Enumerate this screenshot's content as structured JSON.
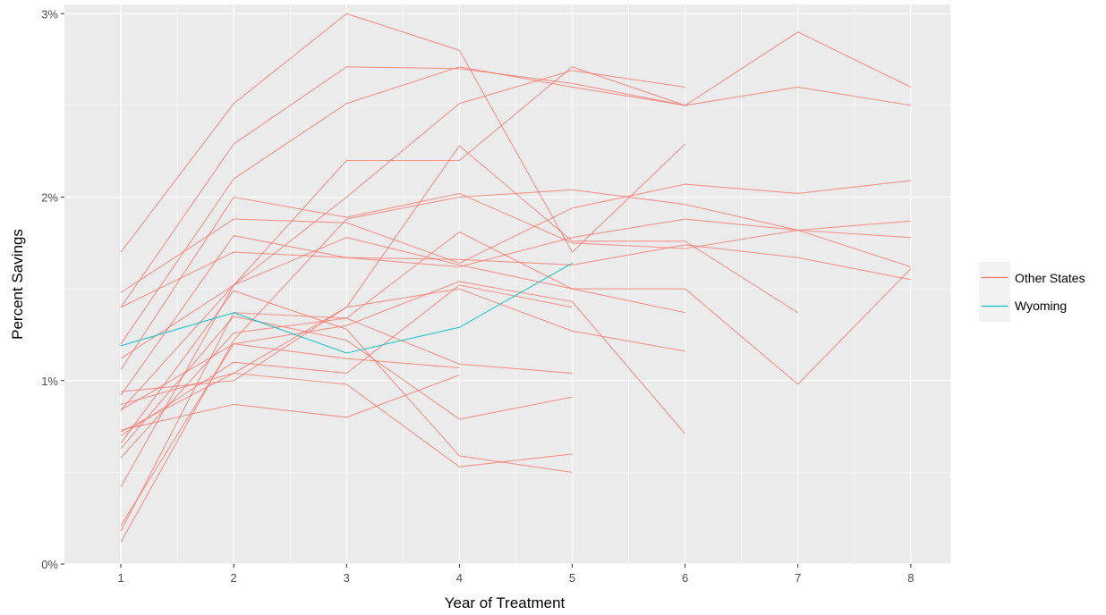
{
  "chart_data": {
    "type": "line",
    "xlabel": "Year of Treatment",
    "ylabel": "Percent Savings",
    "xlim": [
      0.5,
      8.35
    ],
    "ylim": [
      0,
      3.05
    ],
    "x_ticks": [
      1,
      2,
      3,
      4,
      5,
      6,
      7,
      8
    ],
    "x_tick_labels": [
      "1",
      "2",
      "3",
      "4",
      "5",
      "6",
      "7",
      "8"
    ],
    "y_ticks": [
      0,
      1,
      2,
      3
    ],
    "y_tick_labels": [
      "0%",
      "1%",
      "2%",
      "3%"
    ],
    "y_minor_ticks": [
      0.5,
      1.5,
      2.5
    ],
    "x_minor_ticks": [
      1.5,
      2.5,
      3.5,
      4.5,
      5.5,
      6.5,
      7.5
    ],
    "grid": true,
    "panel_background": "#ebebeb",
    "legend_position": "right",
    "legend": [
      {
        "label": "Other States",
        "color": "#f8766d"
      },
      {
        "label": "Wyoming",
        "color": "#00bfc4"
      }
    ],
    "series": [
      {
        "group": "Other States",
        "x": [
          1,
          2,
          3,
          4,
          5,
          6
        ],
        "y": [
          1.7,
          2.51,
          3.0,
          2.8,
          1.7,
          2.29
        ]
      },
      {
        "group": "Other States",
        "x": [
          1,
          2,
          3,
          4,
          5,
          6,
          7,
          8
        ],
        "y": [
          1.4,
          2.29,
          2.71,
          2.7,
          2.62,
          2.5,
          2.9,
          2.6
        ]
      },
      {
        "group": "Other States",
        "x": [
          1,
          2,
          3,
          4,
          5,
          6,
          7,
          8
        ],
        "y": [
          1.2,
          2.1,
          2.51,
          2.71,
          2.6,
          2.5,
          2.6,
          2.5
        ]
      },
      {
        "group": "Other States",
        "x": [
          1,
          2,
          3,
          4,
          5,
          6
        ],
        "y": [
          0.84,
          1.52,
          2.2,
          2.2,
          2.71,
          2.5
        ]
      },
      {
        "group": "Other States",
        "x": [
          1,
          2,
          3,
          4,
          5,
          6
        ],
        "y": [
          0.42,
          1.52,
          2.0,
          2.51,
          2.69,
          2.6
        ]
      },
      {
        "group": "Other States",
        "x": [
          1,
          2,
          3,
          4,
          5,
          6,
          7,
          8
        ],
        "y": [
          0.12,
          1.22,
          1.88,
          2.0,
          2.04,
          1.96,
          1.82,
          1.62
        ]
      },
      {
        "group": "Other States",
        "x": [
          1,
          2,
          3,
          4,
          5,
          6,
          7,
          8
        ],
        "y": [
          1.06,
          2.0,
          1.89,
          2.02,
          1.75,
          1.72,
          1.82,
          1.78
        ]
      },
      {
        "group": "Other States",
        "x": [
          1,
          2,
          3,
          4,
          5,
          6,
          7,
          8
        ],
        "y": [
          1.48,
          1.88,
          1.86,
          1.64,
          1.94,
          2.07,
          2.02,
          2.09
        ]
      },
      {
        "group": "Other States",
        "x": [
          1,
          2,
          3,
          4,
          5,
          6,
          7,
          8
        ],
        "y": [
          1.4,
          1.7,
          1.67,
          1.62,
          1.78,
          1.88,
          1.82,
          1.87
        ]
      },
      {
        "group": "Other States",
        "x": [
          1,
          2,
          3,
          4,
          5,
          6,
          7,
          8
        ],
        "y": [
          0.92,
          1.79,
          1.67,
          1.66,
          1.63,
          1.74,
          1.67,
          1.55
        ]
      },
      {
        "group": "Other States",
        "x": [
          1,
          2,
          3,
          4,
          5,
          6,
          7,
          8
        ],
        "y": [
          1.12,
          1.52,
          1.78,
          1.63,
          1.5,
          1.5,
          0.98,
          1.61
        ]
      },
      {
        "group": "Other States",
        "x": [
          1,
          2,
          3,
          4,
          5,
          6,
          7
        ],
        "y": [
          0.94,
          1.0,
          1.4,
          2.28,
          1.76,
          1.76,
          1.37
        ]
      },
      {
        "group": "Other States",
        "x": [
          1,
          2,
          3,
          4,
          5,
          6
        ],
        "y": [
          0.58,
          1.26,
          1.34,
          1.81,
          1.5,
          1.37
        ]
      },
      {
        "group": "Other States",
        "x": [
          1,
          2,
          3,
          4,
          5,
          6
        ],
        "y": [
          0.72,
          1.04,
          1.4,
          1.5,
          1.27,
          1.16
        ]
      },
      {
        "group": "Other States",
        "x": [
          1,
          2,
          3,
          4,
          5,
          6
        ],
        "y": [
          0.84,
          1.2,
          1.3,
          1.54,
          1.43,
          0.71
        ]
      },
      {
        "group": "Other States",
        "x": [
          1,
          2,
          3,
          4,
          5
        ],
        "y": [
          0.18,
          1.37,
          1.34,
          1.09,
          1.04
        ]
      },
      {
        "group": "Other States",
        "x": [
          1,
          2,
          3,
          4,
          5
        ],
        "y": [
          0.7,
          1.1,
          1.04,
          1.52,
          1.4
        ]
      },
      {
        "group": "Other States",
        "x": [
          1,
          2,
          3,
          4,
          5
        ],
        "y": [
          0.63,
          1.35,
          1.22,
          0.79,
          0.91
        ]
      },
      {
        "group": "Other States",
        "x": [
          1,
          2,
          3,
          4,
          5
        ],
        "y": [
          0.66,
          1.49,
          1.28,
          0.59,
          0.5
        ]
      },
      {
        "group": "Other States",
        "x": [
          1,
          2,
          3,
          4,
          5
        ],
        "y": [
          0.87,
          1.04,
          0.98,
          0.53,
          0.6
        ]
      },
      {
        "group": "Other States",
        "x": [
          1,
          2,
          3,
          4
        ],
        "y": [
          0.73,
          0.87,
          0.8,
          1.03
        ]
      },
      {
        "group": "Other States",
        "x": [
          1,
          2,
          3,
          4
        ],
        "y": [
          0.21,
          1.2,
          1.12,
          1.07
        ]
      },
      {
        "group": "Wyoming",
        "x": [
          1,
          2,
          3,
          4,
          5
        ],
        "y": [
          1.19,
          1.37,
          1.15,
          1.29,
          1.64
        ]
      }
    ]
  }
}
